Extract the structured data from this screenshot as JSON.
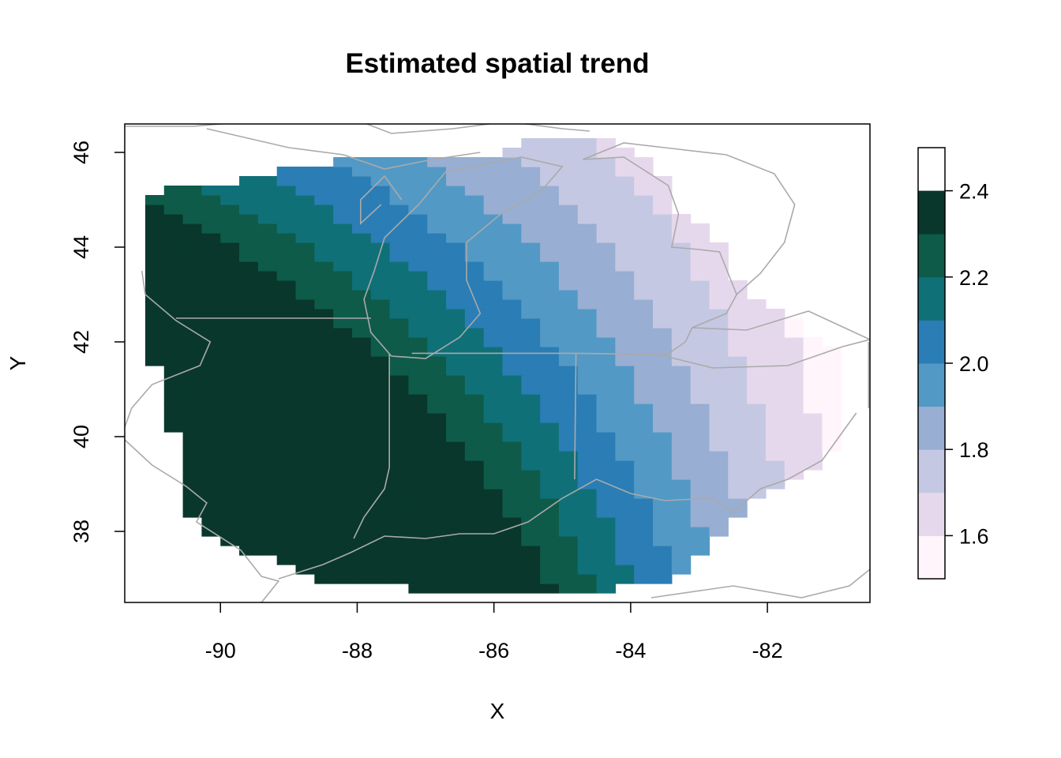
{
  "chart_data": {
    "type": "heatmap",
    "title": "Estimated spatial trend",
    "xlabel": "X",
    "ylabel": "Y",
    "xlim": [
      -91.4,
      -80.5
    ],
    "ylim": [
      36.5,
      46.6
    ],
    "x_ticks": [
      -90,
      -88,
      -86,
      -84,
      -82
    ],
    "y_ticks": [
      38,
      40,
      42,
      44,
      46
    ],
    "grid": false,
    "legend": {
      "type": "colorbar",
      "placement": "right",
      "breaks": [
        1.5,
        1.6,
        1.7,
        1.8,
        1.9,
        2.0,
        2.1,
        2.2,
        2.3,
        2.4,
        2.5
      ],
      "ticks": [
        1.6,
        1.8,
        2.0,
        2.2,
        2.4
      ],
      "colors": [
        "#fff5fb",
        "#e6d8ec",
        "#c5c8e2",
        "#98aed3",
        "#5399c5",
        "#2b7db5",
        "#107077",
        "#0e5b4a",
        "#09372c"
      ]
    },
    "surface": {
      "description": "Gridded field with values decreasing from ~2.45 in southwest (Illinois) toward ~1.85 in the east/northeast (Ohio, Lake Huron)",
      "cells_dx": 0.275,
      "cells_dy": 0.2
    },
    "basemap_color": "#aaaaaa"
  }
}
